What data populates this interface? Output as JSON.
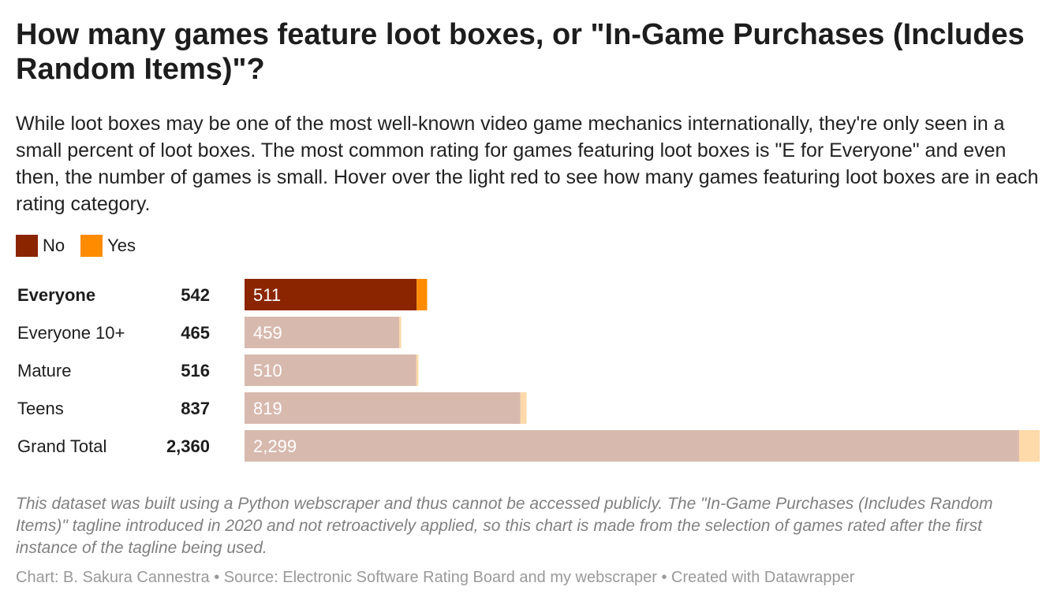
{
  "title": "How many games feature loot boxes, or \"In-Game Purchases (Includes Random Items)\"?",
  "description": "While loot boxes may be one of the most well-known video game mechanics internationally, they're only seen in a small percent of loot boxes. The most common rating for games featuring loot boxes is \"E for Everyone\" and even then, the number of games is small. Hover over the light red to see how many games featuring loot boxes are in each rating category.",
  "legend": [
    {
      "label": "No",
      "color": "#8b2500"
    },
    {
      "label": "Yes",
      "color": "#ff8c00"
    }
  ],
  "colors": {
    "no_highlight": "#8b2500",
    "yes_highlight": "#ff8c00",
    "no_faded": "#d8b9ae",
    "yes_faded": "#fed9a9"
  },
  "chart_data": {
    "type": "bar",
    "orientation": "horizontal",
    "stacked": true,
    "categories": [
      "Everyone",
      "Everyone 10+",
      "Mature",
      "Teens",
      "Grand Total"
    ],
    "totals": [
      542,
      465,
      516,
      837,
      2360
    ],
    "total_labels": [
      "542",
      "465",
      "516",
      "837",
      "2,360"
    ],
    "no_labels": [
      "511",
      "459",
      "510",
      "819",
      "2,299"
    ],
    "highlighted": "Everyone",
    "series": [
      {
        "name": "No",
        "values": [
          511,
          459,
          510,
          819,
          2299
        ]
      },
      {
        "name": "Yes",
        "values": [
          31,
          6,
          6,
          18,
          61
        ]
      }
    ],
    "xlim": [
      0,
      2360
    ]
  },
  "notes": "This dataset was built using a Python webscraper and thus cannot be accessed publicly. The \"In-Game Purchases (Includes Random Items)\" tagline introduced in 2020 and not retroactively applied, so this chart is made from the selection of games rated after the first instance of the tagline being used.",
  "footer": "Chart: B. Sakura Cannestra • Source: Electronic Software Rating Board and my webscraper • Created with Datawrapper"
}
